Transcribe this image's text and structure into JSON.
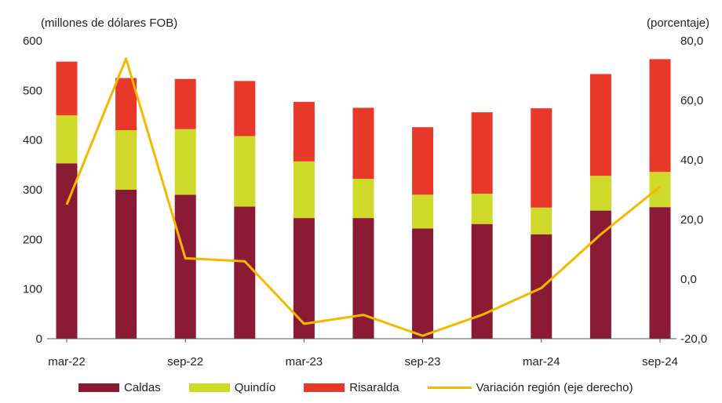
{
  "chart_data": {
    "type": "bar",
    "stacked": true,
    "categories": [
      "mar-22",
      "jun-22",
      "sep-22",
      "dic-22",
      "mar-23",
      "jun-23",
      "sep-23",
      "dic-23",
      "mar-24",
      "jun-24",
      "sep-24"
    ],
    "x_tick_labels": [
      "mar-22",
      "sep-22",
      "mar-23",
      "sep-23",
      "mar-24",
      "sep-24"
    ],
    "ylabel_left": "(millones de dólares FOB)",
    "ylabel_right": "(porcentaje)",
    "ylim_left": [
      0,
      600
    ],
    "ylim_right": [
      -20,
      80
    ],
    "yticks_left": [
      "0",
      "100",
      "200",
      "300",
      "400",
      "500",
      "600"
    ],
    "yticks_right": [
      "-20,0",
      "0,0",
      "20,0",
      "40,0",
      "60,0",
      "80,0"
    ],
    "series": [
      {
        "name": "Caldas",
        "color": "#8b1a34",
        "values": [
          353,
          300,
          290,
          266,
          243,
          243,
          222,
          231,
          210,
          258,
          265
        ]
      },
      {
        "name": "Quindío",
        "color": "#cfd92a",
        "values": [
          97,
          120,
          132,
          142,
          114,
          79,
          68,
          61,
          54,
          70,
          71
        ]
      },
      {
        "name": "Risaralda",
        "color": "#e8382a",
        "values": [
          108,
          105,
          101,
          111,
          120,
          143,
          136,
          164,
          200,
          205,
          227
        ]
      }
    ],
    "line_series": {
      "name": "Variación región (eje derecho)",
      "axis": "right",
      "color": "#f5b800",
      "values": [
        25,
        74,
        7,
        6,
        -15,
        -12,
        -19,
        -12,
        -3,
        15,
        31
      ]
    },
    "legend_position": "bottom",
    "grid": false
  }
}
